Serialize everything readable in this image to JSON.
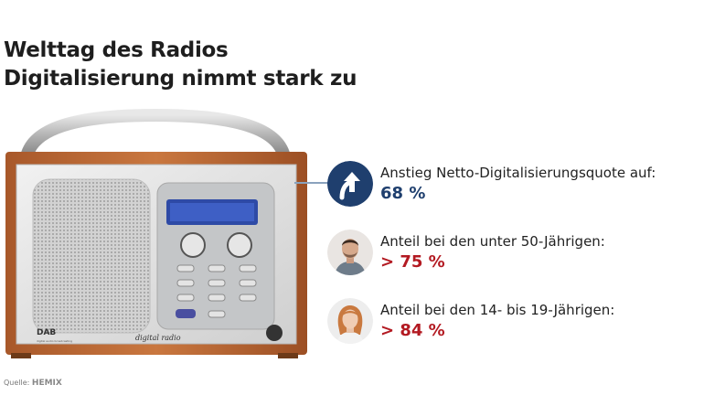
{
  "title": {
    "line1": "Welttag des Radios",
    "line2": "Digitalisierung nimmt stark zu"
  },
  "radio": {
    "brand_label": "digital radio",
    "dab_logo": "DAB",
    "dab_subtext": "digital audio broadcasting",
    "icon": "dab-radio-image"
  },
  "stats": [
    {
      "label": "Anstieg Netto-Digitalisierungsquote auf:",
      "value": "68 %",
      "color": "#1f3f6e",
      "icon": "arrow-up-icon"
    },
    {
      "label": "Anteil bei den unter 50-Jährigen:",
      "value": "> 75 %",
      "color": "#b31a22",
      "icon": "man-portrait-icon"
    },
    {
      "label": "Anteil bei den 14- bis 19-Jährigen:",
      "value": "> 84 %",
      "color": "#b31a22",
      "icon": "woman-portrait-icon"
    }
  ],
  "source": {
    "prefix": "Quelle:",
    "brand": "HEMIX"
  }
}
